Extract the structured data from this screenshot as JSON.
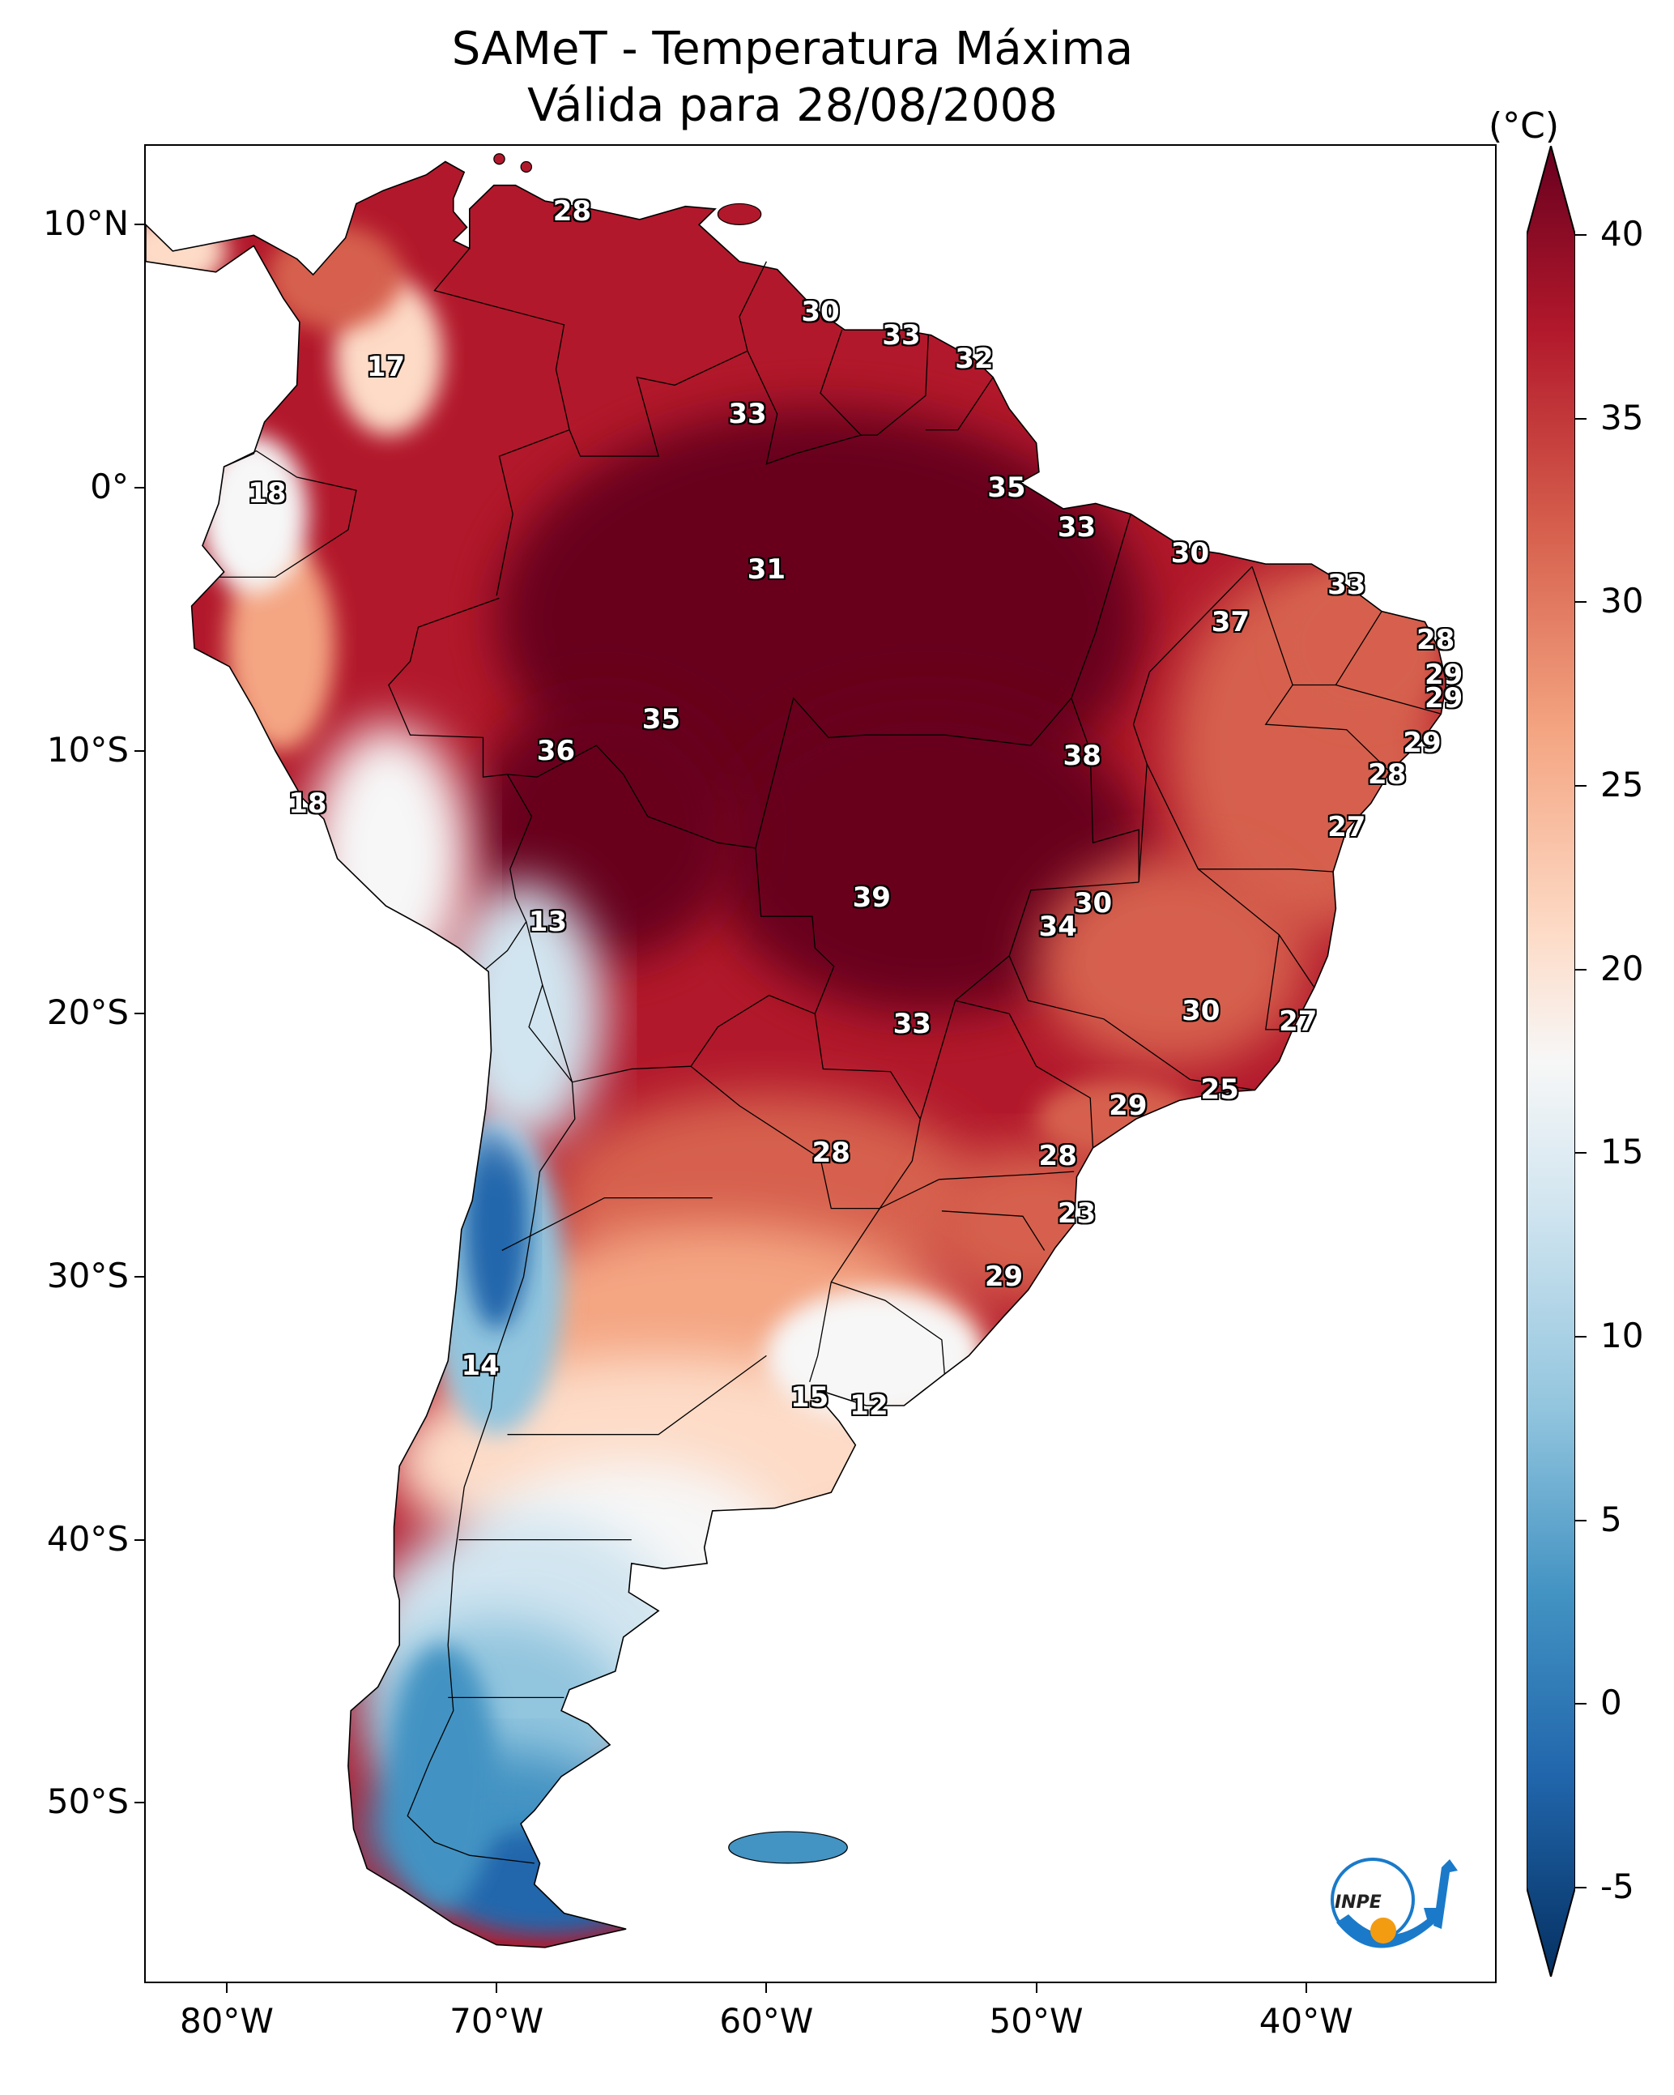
{
  "title": {
    "line1": "SAMeT - Temperatura Máxima",
    "line2": "Válida para 28/08/2008"
  },
  "axes": {
    "lat_labels": [
      "10°N",
      "0°",
      "10°S",
      "20°S",
      "30°S",
      "40°S",
      "50°S"
    ],
    "lat_values": [
      10,
      0,
      -10,
      -20,
      -30,
      -40,
      -50
    ],
    "lon_labels": [
      "80°W",
      "70°W",
      "60°W",
      "50°W",
      "40°W"
    ],
    "lon_values": [
      -80,
      -70,
      -60,
      -50,
      -40
    ]
  },
  "colorbar": {
    "unit": "(°C)",
    "tick_labels": [
      "40",
      "35",
      "30",
      "25",
      "20",
      "15",
      "10",
      "5",
      "0",
      "-5"
    ],
    "tick_values": [
      40,
      35,
      30,
      25,
      20,
      15,
      10,
      5,
      0,
      -5
    ],
    "min": -5,
    "max": 40,
    "colors": {
      "darkred": "#67001f",
      "red": "#b2182b",
      "salmon": "#d6604d",
      "peach": "#f4a582",
      "lightpeach": "#fddbc7",
      "white": "#f7f7f7",
      "lightblue": "#d1e5f0",
      "skyblue": "#92c5de",
      "blue": "#4393c3",
      "deepblue": "#2166ac",
      "navy": "#053061"
    }
  },
  "cities": [
    {
      "label": "28",
      "lon": -67.2,
      "lat": 10.5
    },
    {
      "label": "30",
      "lon": -58.0,
      "lat": 6.7
    },
    {
      "label": "33",
      "lon": -55.0,
      "lat": 5.8
    },
    {
      "label": "32",
      "lon": -52.3,
      "lat": 4.9
    },
    {
      "label": "17",
      "lon": -74.1,
      "lat": 4.6
    },
    {
      "label": "33",
      "lon": -60.7,
      "lat": 2.8
    },
    {
      "label": "35",
      "lon": -51.1,
      "lat": 0.0
    },
    {
      "label": "18",
      "lon": -78.5,
      "lat": -0.2
    },
    {
      "label": "33",
      "lon": -48.5,
      "lat": -1.5
    },
    {
      "label": "30",
      "lon": -44.3,
      "lat": -2.5
    },
    {
      "label": "31",
      "lon": -60.0,
      "lat": -3.1
    },
    {
      "label": "33",
      "lon": -38.5,
      "lat": -3.7
    },
    {
      "label": "37",
      "lon": -42.8,
      "lat": -5.1
    },
    {
      "label": "28",
      "lon": -35.2,
      "lat": -5.8
    },
    {
      "label": "29",
      "lon": -34.9,
      "lat": -7.1
    },
    {
      "label": "29",
      "lon": -34.9,
      "lat": -8.0
    },
    {
      "label": "35",
      "lon": -63.9,
      "lat": -8.8
    },
    {
      "label": "36",
      "lon": -67.8,
      "lat": -10.0
    },
    {
      "label": "38",
      "lon": -48.3,
      "lat": -10.2
    },
    {
      "label": "29",
      "lon": -35.7,
      "lat": -9.7
    },
    {
      "label": "28",
      "lon": -37.0,
      "lat": -10.9
    },
    {
      "label": "18",
      "lon": -77.0,
      "lat": -12.0
    },
    {
      "label": "27",
      "lon": -38.5,
      "lat": -12.9
    },
    {
      "label": "30",
      "lon": -47.9,
      "lat": -15.8
    },
    {
      "label": "39",
      "lon": -56.1,
      "lat": -15.6
    },
    {
      "label": "34",
      "lon": -49.2,
      "lat": -16.7
    },
    {
      "label": "13",
      "lon": -68.1,
      "lat": -16.5
    },
    {
      "label": "30",
      "lon": -43.9,
      "lat": -19.9
    },
    {
      "label": "27",
      "lon": -40.3,
      "lat": -20.3
    },
    {
      "label": "33",
      "lon": -54.6,
      "lat": -20.4
    },
    {
      "label": "25",
      "lon": -43.2,
      "lat": -22.9
    },
    {
      "label": "29",
      "lon": -46.6,
      "lat": -23.5
    },
    {
      "label": "28",
      "lon": -57.6,
      "lat": -25.3
    },
    {
      "label": "28",
      "lon": -49.2,
      "lat": -25.4
    },
    {
      "label": "23",
      "lon": -48.5,
      "lat": -27.6
    },
    {
      "label": "29",
      "lon": -51.2,
      "lat": -30.0
    },
    {
      "label": "14",
      "lon": -70.6,
      "lat": -33.4
    },
    {
      "label": "15",
      "lon": -58.4,
      "lat": -34.6
    },
    {
      "label": "12",
      "lon": -56.2,
      "lat": -34.9
    }
  ]
}
